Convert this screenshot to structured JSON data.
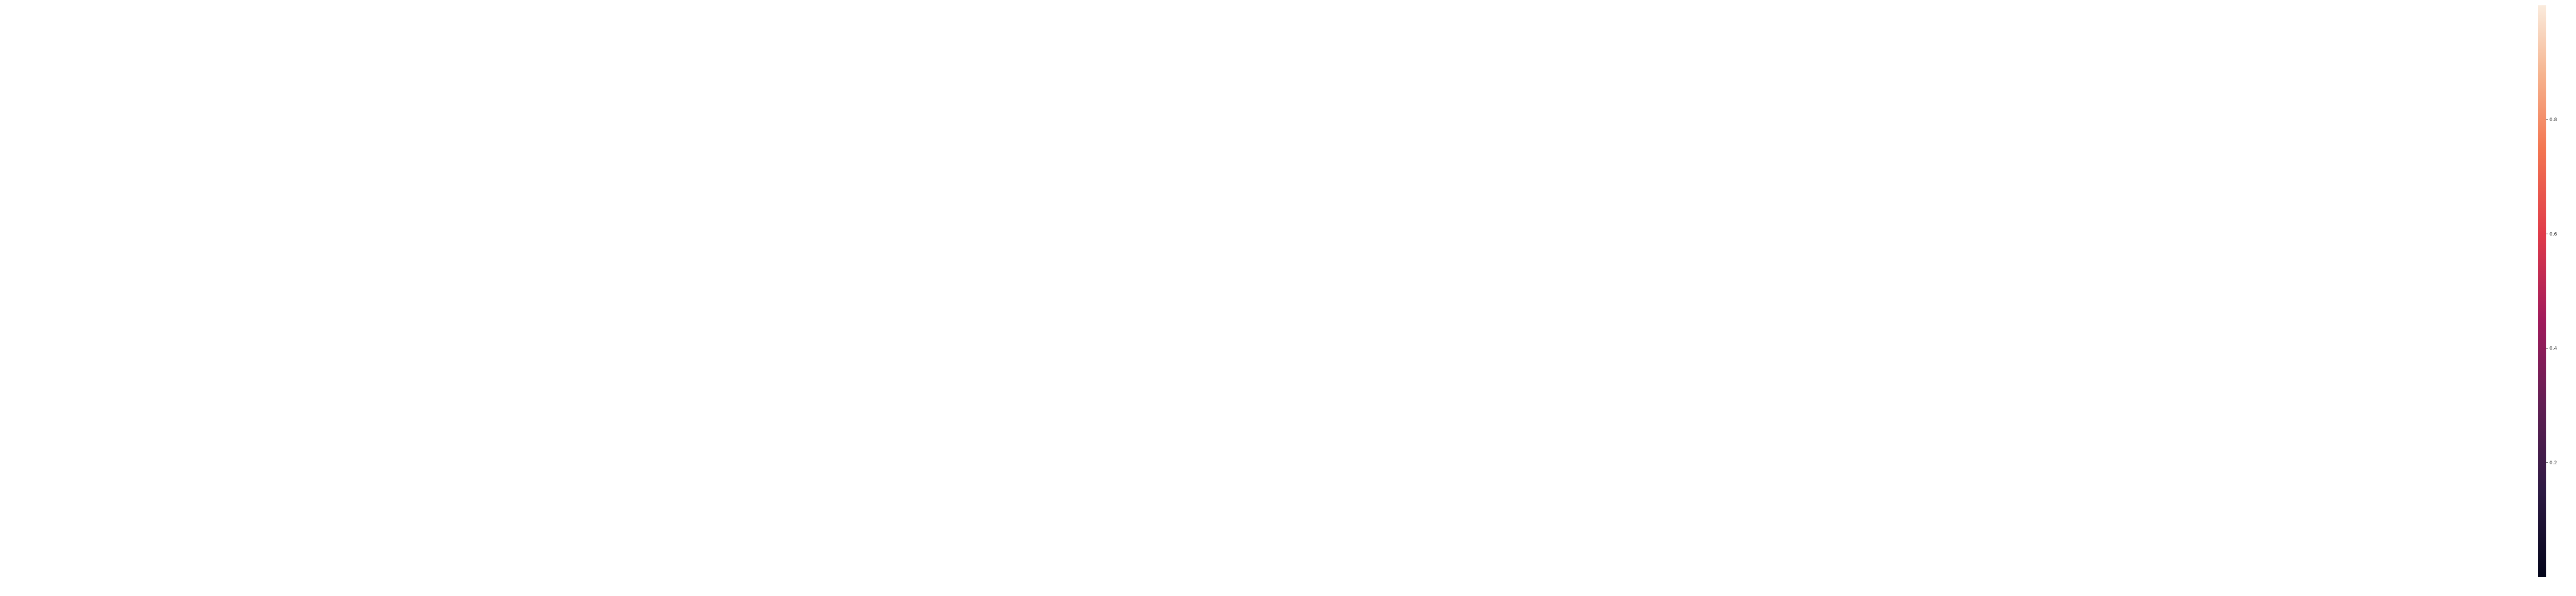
{
  "chart_data": {
    "type": "heatmap",
    "title": "",
    "xlabel": "",
    "ylabel": "",
    "row_labels": [],
    "col_labels": [],
    "values": [],
    "value_range": [
      0,
      1
    ],
    "annotated": true,
    "colorbar": {
      "colormap": "rocket",
      "ticks": [
        0.2,
        0.4,
        0.6,
        0.8
      ]
    }
  }
}
